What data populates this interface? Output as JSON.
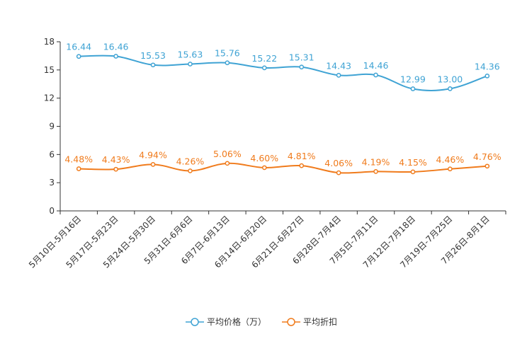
{
  "chart_data": {
    "type": "line",
    "title": "",
    "xlabel": "",
    "ylabel": "",
    "ylim": [
      0,
      18
    ],
    "yticks": [
      "0",
      "3",
      "6",
      "9",
      "12",
      "15",
      "18"
    ],
    "categories": [
      "5月10日-5月16日",
      "5月17日-5月23日",
      "5月24日-5月30日",
      "5月31日-6月6日",
      "6月7日-6月13日",
      "6月14日-6月20日",
      "6月21日-6月27日",
      "6月28日-7月4日",
      "7月5日-7月11日",
      "7月12日-7月18日",
      "7月19日-7月25日",
      "7月26日-8月1日"
    ],
    "series": [
      {
        "name": "平均价格（万）",
        "color": "#3fa3d4",
        "values": [
          16.44,
          16.46,
          15.53,
          15.63,
          15.76,
          15.22,
          15.31,
          14.43,
          14.46,
          12.99,
          13.0,
          14.36
        ],
        "labels": [
          "16.44",
          "16.46",
          "15.53",
          "15.63",
          "15.76",
          "15.22",
          "15.31",
          "14.43",
          "14.46",
          "12.99",
          "13.00",
          "14.36"
        ]
      },
      {
        "name": "平均折扣",
        "color": "#f07b1c",
        "values": [
          4.48,
          4.43,
          4.94,
          4.26,
          5.06,
          4.6,
          4.81,
          4.06,
          4.19,
          4.15,
          4.46,
          4.76
        ],
        "labels": [
          "4.48%",
          "4.43%",
          "4.94%",
          "4.26%",
          "5.06%",
          "4.60%",
          "4.81%",
          "4.06%",
          "4.19%",
          "4.15%",
          "4.46%",
          "4.76%"
        ]
      }
    ],
    "legend_position": "bottom"
  }
}
